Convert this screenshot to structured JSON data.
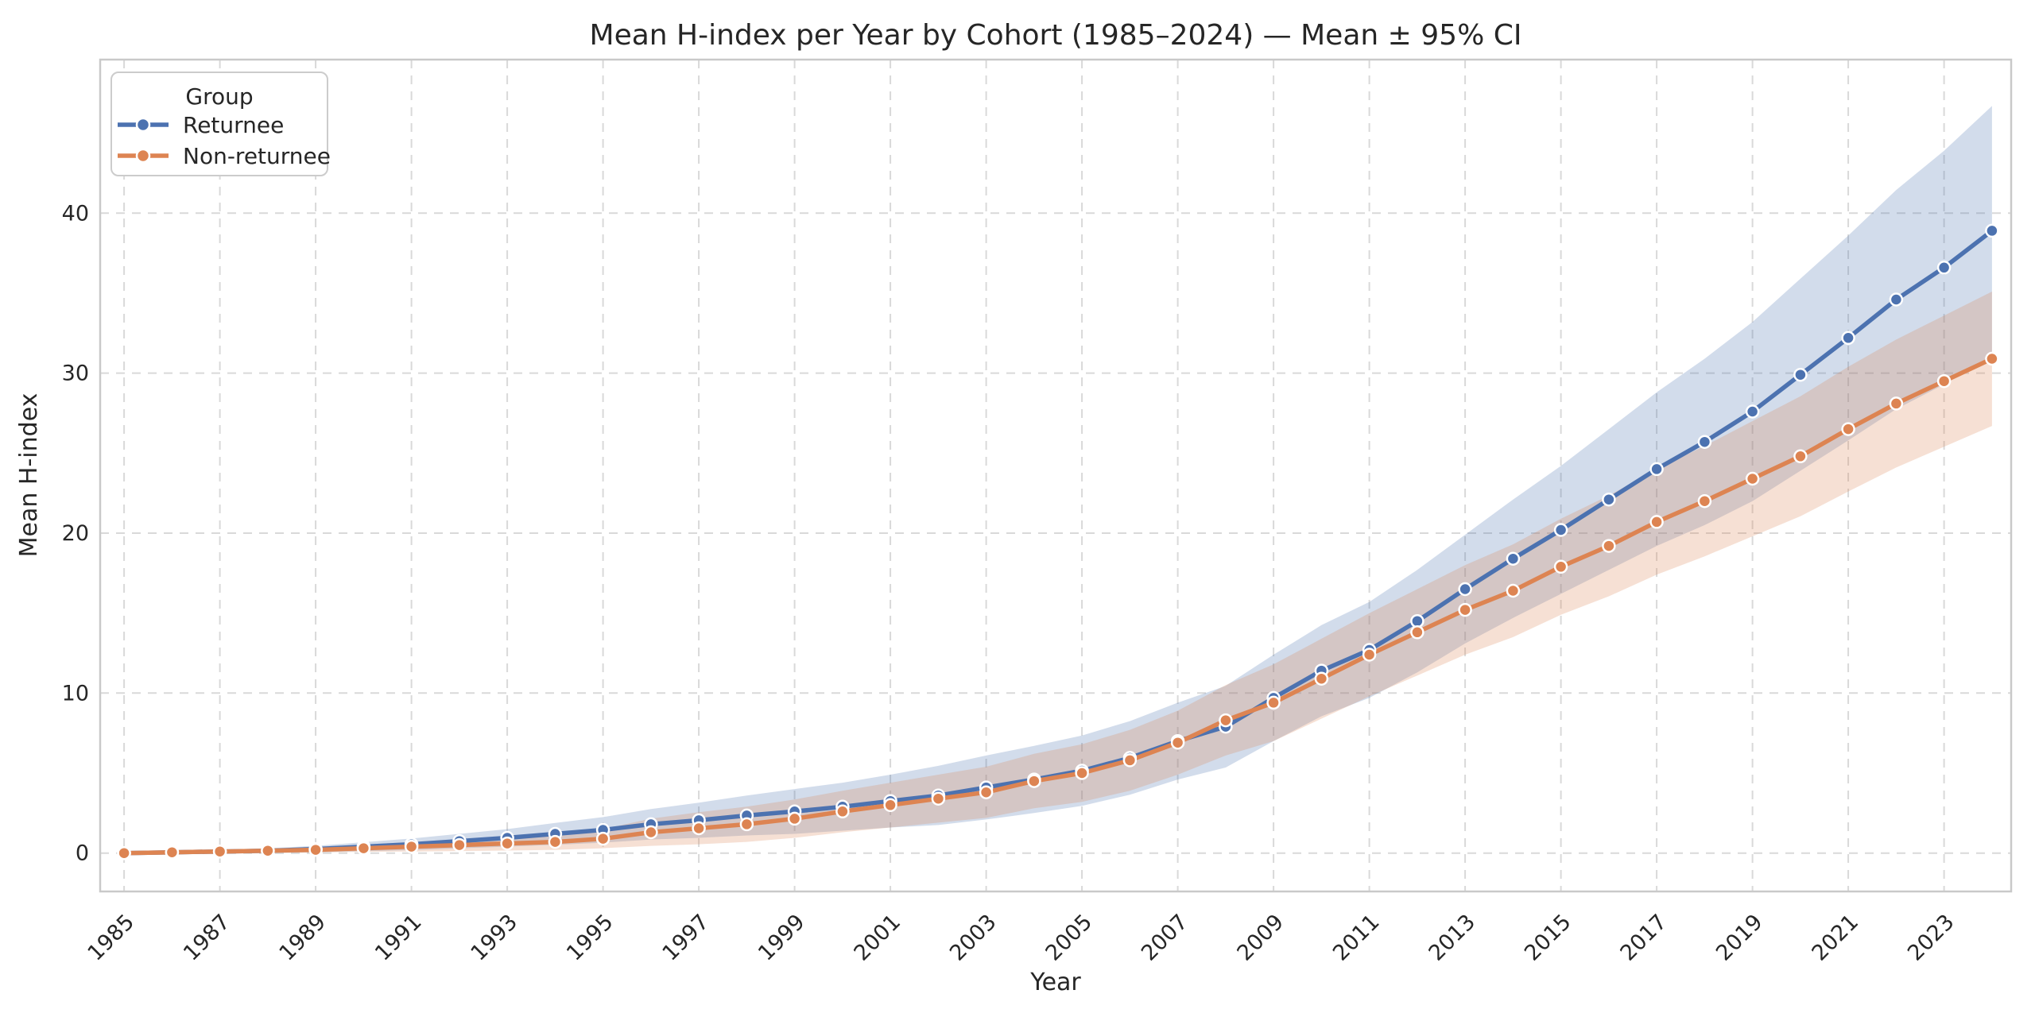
{
  "figure": {
    "background": "#ffffff",
    "frame_color": "#c9c9c9",
    "grid_color": "#d9d9d9",
    "text_color": "#262626"
  },
  "chart_data": {
    "type": "line",
    "title": "Mean H-index per Year by Cohort (1985–2024) — Mean ± 95% CI",
    "xlabel": "Year",
    "ylabel": "Mean H-index",
    "grid": "dashed",
    "band_opacity": 0.25,
    "xlim": [
      1984.5,
      2024.4
    ],
    "ylim": [
      -2.4,
      49.6
    ],
    "xticks": [
      1985,
      1987,
      1989,
      1991,
      1993,
      1995,
      1997,
      1999,
      2001,
      2003,
      2005,
      2007,
      2009,
      2011,
      2013,
      2015,
      2017,
      2019,
      2021,
      2023
    ],
    "yticks": [
      0,
      10,
      20,
      30,
      40
    ],
    "x": [
      1985,
      1986,
      1987,
      1988,
      1989,
      1990,
      1991,
      1992,
      1993,
      1994,
      1995,
      1996,
      1997,
      1998,
      1999,
      2000,
      2001,
      2002,
      2003,
      2004,
      2005,
      2006,
      2007,
      2008,
      2009,
      2010,
      2011,
      2012,
      2013,
      2014,
      2015,
      2016,
      2017,
      2018,
      2019,
      2020,
      2021,
      2022,
      2023,
      2024
    ],
    "legend": {
      "title": "Group",
      "position": "upper-left"
    },
    "series": [
      {
        "name": "Returnee",
        "color": "#4C72B0",
        "values": [
          0.0,
          0.05,
          0.1,
          0.15,
          0.25,
          0.4,
          0.55,
          0.75,
          0.95,
          1.2,
          1.45,
          1.8,
          2.05,
          2.35,
          2.6,
          2.9,
          3.25,
          3.6,
          4.1,
          4.6,
          5.15,
          5.95,
          7.0,
          7.9,
          9.7,
          11.4,
          12.7,
          14.5,
          16.5,
          18.4,
          20.2,
          22.1,
          24.0,
          25.7,
          27.6,
          29.9,
          32.2,
          34.6,
          36.6,
          38.9
        ],
        "ci_low": [
          -0.05,
          -0.03,
          0.0,
          0.0,
          0.05,
          0.12,
          0.19,
          0.3,
          0.4,
          0.52,
          0.65,
          0.85,
          0.95,
          1.1,
          1.2,
          1.4,
          1.6,
          1.75,
          2.1,
          2.5,
          2.95,
          3.65,
          4.6,
          5.35,
          7.0,
          8.55,
          9.7,
          11.3,
          13.1,
          14.7,
          16.2,
          17.7,
          19.2,
          20.5,
          22.0,
          23.9,
          25.8,
          27.75,
          29.3,
          31.1
        ],
        "ci_high": [
          0.05,
          0.13,
          0.2,
          0.3,
          0.45,
          0.68,
          0.91,
          1.2,
          1.5,
          1.88,
          2.25,
          2.75,
          3.15,
          3.6,
          4.0,
          4.4,
          4.9,
          5.45,
          6.1,
          6.7,
          7.35,
          8.25,
          9.4,
          10.45,
          12.4,
          14.25,
          15.7,
          17.7,
          19.9,
          22.1,
          24.2,
          26.5,
          28.8,
          30.9,
          33.2,
          35.9,
          38.6,
          41.45,
          43.9,
          46.7
        ]
      },
      {
        "name": "Non-returnee",
        "color": "#DD8452",
        "values": [
          0.0,
          0.05,
          0.1,
          0.15,
          0.2,
          0.3,
          0.4,
          0.5,
          0.6,
          0.7,
          0.9,
          1.3,
          1.55,
          1.8,
          2.15,
          2.6,
          3.0,
          3.4,
          3.8,
          4.5,
          5.0,
          5.8,
          6.9,
          8.3,
          9.4,
          10.9,
          12.4,
          13.8,
          15.2,
          16.4,
          17.9,
          19.2,
          20.7,
          22.0,
          23.4,
          24.8,
          26.5,
          28.1,
          29.5,
          30.9
        ],
        "ci_low": [
          -0.05,
          -0.02,
          0.01,
          0.03,
          0.04,
          0.08,
          0.1,
          0.13,
          0.16,
          0.2,
          0.3,
          0.45,
          0.55,
          0.7,
          0.95,
          1.3,
          1.6,
          1.9,
          2.2,
          2.8,
          3.2,
          3.9,
          4.9,
          6.1,
          7.0,
          8.4,
          9.8,
          11.1,
          12.4,
          13.5,
          14.9,
          16.05,
          17.4,
          18.55,
          19.8,
          21.05,
          22.6,
          24.1,
          25.4,
          26.7
        ],
        "ci_high": [
          0.05,
          0.12,
          0.19,
          0.27,
          0.36,
          0.52,
          0.7,
          0.87,
          1.04,
          1.2,
          1.5,
          2.15,
          2.55,
          2.9,
          3.35,
          3.9,
          4.4,
          4.9,
          5.4,
          6.2,
          6.8,
          7.7,
          8.9,
          10.5,
          11.8,
          13.4,
          15.0,
          16.5,
          18.0,
          19.3,
          20.9,
          22.35,
          24.0,
          25.45,
          27.0,
          28.55,
          30.4,
          32.1,
          33.6,
          35.1
        ]
      }
    ]
  }
}
